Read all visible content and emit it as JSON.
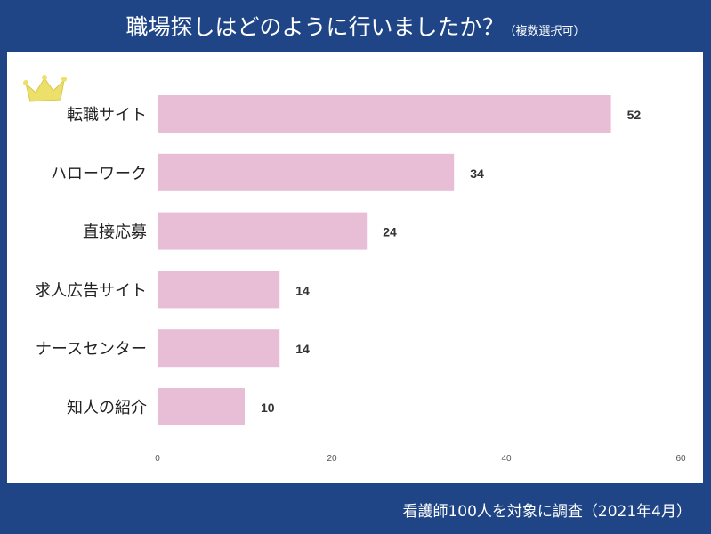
{
  "title": "職場探しはどのように行いましたか？",
  "subtitle": "（複数選択可）",
  "footer": "看護師100人を対象に調査（2021年4月）",
  "chart_data": {
    "type": "bar",
    "orientation": "horizontal",
    "categories": [
      "転職サイト",
      "ハローワーク",
      "直接応募",
      "求人広告サイト",
      "ナースセンター",
      "知人の紹介"
    ],
    "values": [
      52,
      34,
      24,
      14,
      14,
      10
    ],
    "xlim": [
      0,
      60
    ],
    "xticks": [
      0,
      20,
      40,
      60
    ],
    "grid": false,
    "bar_color": "#e8bdd6",
    "highlight_icon": "crown-icon"
  }
}
